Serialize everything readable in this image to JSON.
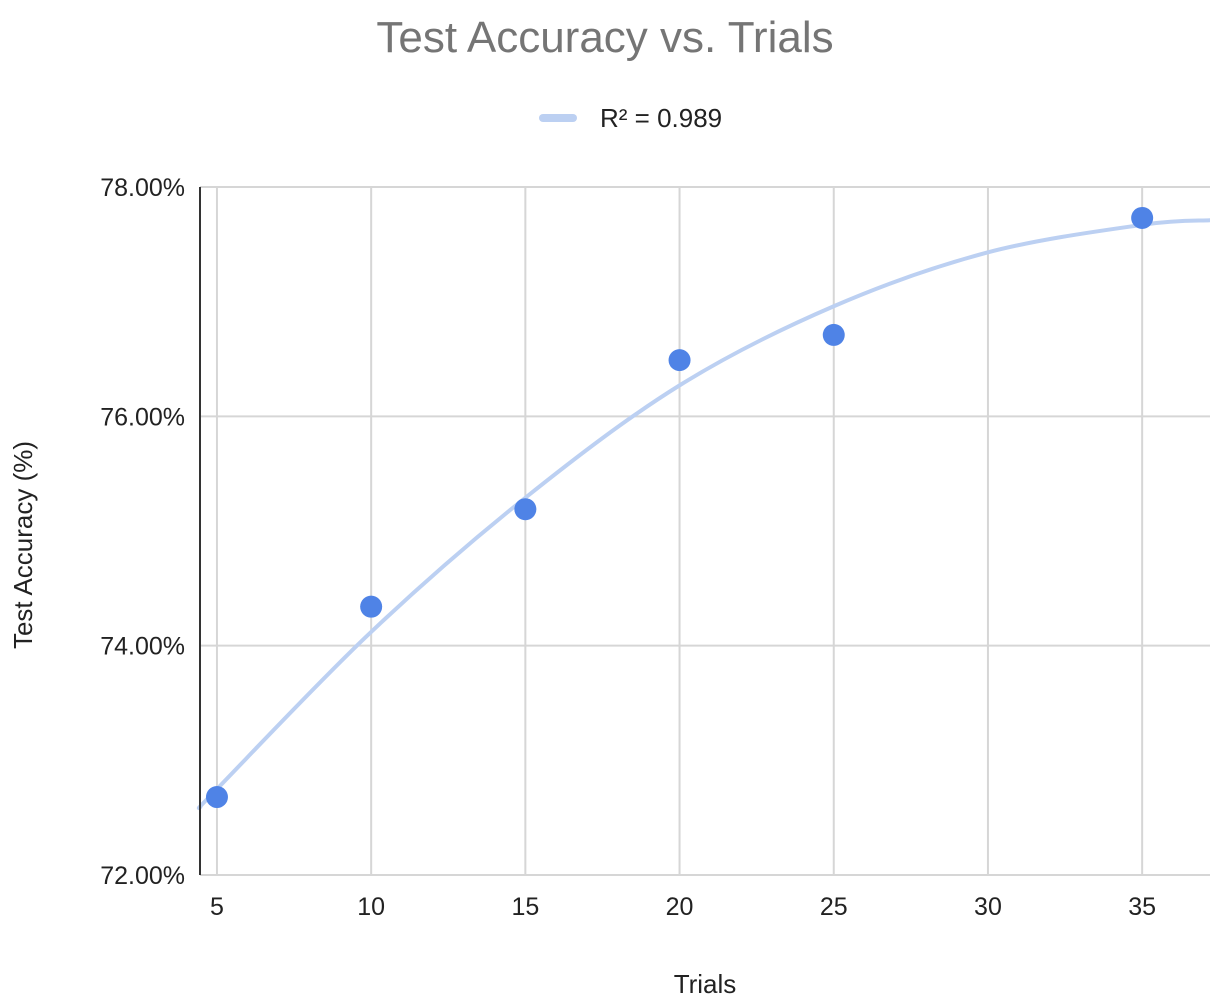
{
  "chart_data": {
    "type": "scatter",
    "title": "Test Accuracy vs. Trials",
    "xlabel": "Trials",
    "ylabel": "Test Accuracy (%)",
    "xlim": [
      4.45,
      37.2
    ],
    "ylim": [
      72,
      78
    ],
    "x_ticks": [
      5,
      10,
      15,
      20,
      25,
      30,
      35
    ],
    "y_ticks": [
      72,
      74,
      76,
      78
    ],
    "y_tick_labels": [
      "72.00%",
      "74.00%",
      "76.00%",
      "78.00%"
    ],
    "grid": true,
    "legend_position": "top",
    "series": [
      {
        "type": "scatter",
        "color": "#4f83e6",
        "points": [
          {
            "x": 5,
            "y": 72.68
          },
          {
            "x": 10,
            "y": 74.34
          },
          {
            "x": 15,
            "y": 75.19
          },
          {
            "x": 20,
            "y": 76.49
          },
          {
            "x": 25,
            "y": 76.71
          },
          {
            "x": 35,
            "y": 77.73
          }
        ]
      },
      {
        "type": "trendline",
        "name": "R² = 0.989",
        "color": "#bcd0f2",
        "x_range": [
          4.45,
          37.2
        ],
        "points": [
          {
            "x": 4.45,
            "y": 72.59
          },
          {
            "x": 5,
            "y": 72.75
          },
          {
            "x": 10,
            "y": 74.12
          },
          {
            "x": 15,
            "y": 75.29
          },
          {
            "x": 20,
            "y": 76.27
          },
          {
            "x": 25,
            "y": 76.96
          },
          {
            "x": 30,
            "y": 77.43
          },
          {
            "x": 35,
            "y": 77.67
          },
          {
            "x": 37.2,
            "y": 77.71
          }
        ]
      }
    ]
  }
}
